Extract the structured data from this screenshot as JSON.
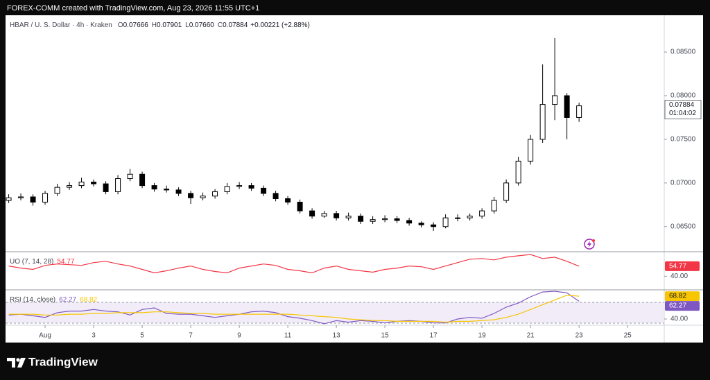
{
  "header": "FOREX-COMM created with TradingView.com, Aug 23, 2026 11:55 UTC+1",
  "footer_logo": "TradingView",
  "chart_data": [
    {
      "type": "candlestick",
      "title": "HBAR / U. S. Dollar · 4h · Kraken",
      "ohlc_legend": [
        {
          "label": "O",
          "value": "0.07666"
        },
        {
          "label": "H",
          "value": "0.07901"
        },
        {
          "label": "L",
          "value": "0.07660"
        },
        {
          "label": "C",
          "value": "0.07884"
        }
      ],
      "change": "+0.00221 (+2.88%)",
      "x": [
        -0.5,
        0,
        0.5,
        1,
        1.5,
        2,
        2.5,
        3,
        3.5,
        4,
        4.5,
        5,
        5.5,
        6,
        6.5,
        7,
        7.5,
        8,
        8.5,
        9,
        9.5,
        10,
        10.5,
        11,
        11.5,
        12,
        12.5,
        13,
        13.5,
        14,
        14.5,
        15,
        15.5,
        16,
        16.5,
        17,
        17.5,
        18,
        18.5,
        19,
        19.5,
        20,
        20.5,
        21,
        21.5,
        22,
        22.5,
        23
      ],
      "open": [
        0.068,
        0.0683,
        0.0684,
        0.0678,
        0.0688,
        0.0695,
        0.0697,
        0.0701,
        0.0699,
        0.069,
        0.0705,
        0.071,
        0.0697,
        0.0693,
        0.0692,
        0.0688,
        0.0683,
        0.0685,
        0.069,
        0.0696,
        0.0697,
        0.0694,
        0.0688,
        0.0682,
        0.0678,
        0.0668,
        0.0662,
        0.0665,
        0.066,
        0.0662,
        0.0656,
        0.0658,
        0.0659,
        0.0657,
        0.0654,
        0.0652,
        0.065,
        0.066,
        0.066,
        0.0662,
        0.0668,
        0.068,
        0.07,
        0.0725,
        0.075,
        0.079,
        0.08,
        0.0775
      ],
      "high": [
        0.0687,
        0.0688,
        0.0687,
        0.0691,
        0.0699,
        0.0701,
        0.0706,
        0.0704,
        0.0702,
        0.0709,
        0.0716,
        0.0713,
        0.07,
        0.0697,
        0.0695,
        0.0691,
        0.0689,
        0.0693,
        0.07,
        0.0701,
        0.07,
        0.0697,
        0.0691,
        0.0685,
        0.0681,
        0.0671,
        0.0668,
        0.0668,
        0.0666,
        0.0665,
        0.0662,
        0.0663,
        0.0662,
        0.066,
        0.0656,
        0.0655,
        0.0664,
        0.0664,
        0.0665,
        0.0671,
        0.0684,
        0.0704,
        0.073,
        0.0755,
        0.0836,
        0.0866,
        0.0803,
        0.0792
      ],
      "low": [
        0.0677,
        0.068,
        0.0674,
        0.0675,
        0.0685,
        0.0692,
        0.0694,
        0.0696,
        0.0687,
        0.0687,
        0.0702,
        0.0694,
        0.069,
        0.0689,
        0.0685,
        0.0676,
        0.068,
        0.0682,
        0.0687,
        0.0693,
        0.0691,
        0.0685,
        0.0679,
        0.0675,
        0.0665,
        0.0659,
        0.066,
        0.0657,
        0.0657,
        0.0653,
        0.0653,
        0.0655,
        0.0654,
        0.0651,
        0.0649,
        0.0645,
        0.0648,
        0.0656,
        0.0657,
        0.0659,
        0.0665,
        0.0677,
        0.0697,
        0.0721,
        0.0746,
        0.0772,
        0.075,
        0.077
      ],
      "close": [
        0.0683,
        0.0684,
        0.0678,
        0.0688,
        0.0695,
        0.0697,
        0.0701,
        0.0699,
        0.069,
        0.0705,
        0.071,
        0.0697,
        0.0693,
        0.0692,
        0.0688,
        0.0683,
        0.0685,
        0.069,
        0.0696,
        0.0697,
        0.0694,
        0.0688,
        0.0682,
        0.0678,
        0.0668,
        0.0662,
        0.0665,
        0.066,
        0.0662,
        0.0656,
        0.0658,
        0.0659,
        0.0657,
        0.0654,
        0.0652,
        0.065,
        0.066,
        0.066,
        0.0662,
        0.0668,
        0.068,
        0.07,
        0.0725,
        0.075,
        0.079,
        0.08,
        0.0775,
        0.07884
      ],
      "up_color": "#ffffff",
      "down_color": "#000000",
      "wick_color": "#000000",
      "ylim": [
        0.0622,
        0.0889
      ],
      "yticks": [
        {
          "value": 0.065,
          "label": "0.06500"
        },
        {
          "value": 0.07,
          "label": "0.07000"
        },
        {
          "value": 0.075,
          "label": "0.07500"
        },
        {
          "value": 0.08,
          "label": "0.08000"
        },
        {
          "value": 0.085,
          "label": "0.08500"
        }
      ],
      "xlim": [
        -0.63,
        26.51
      ],
      "xticks": [
        {
          "value": 1,
          "label": "Aug"
        },
        3,
        5,
        7,
        9,
        11,
        13,
        15,
        17,
        19,
        21,
        23,
        25
      ],
      "last_label": "0.07884",
      "countdown": "01:04:02"
    },
    {
      "type": "line",
      "title": "UO (7, 14, 28)",
      "color": "#f23645",
      "values": [
        55,
        52,
        50,
        56,
        58,
        57,
        56,
        60,
        62,
        58,
        55,
        50,
        45,
        48,
        52,
        55,
        50,
        47,
        45,
        52,
        55,
        58,
        56,
        50,
        48,
        45,
        52,
        55,
        50,
        48,
        46,
        50,
        52,
        55,
        54,
        50,
        55,
        60,
        65,
        66,
        64,
        68,
        70,
        72,
        66,
        68,
        62,
        54.77
      ],
      "last_label": "54.77",
      "ylim": [
        21,
        74
      ],
      "yticks": [
        {
          "value": 40,
          "label": "40.00"
        }
      ]
    },
    {
      "type": "line",
      "title": "RSI (14, close)",
      "series": [
        {
          "color": "#7e57c2",
          "values": [
            45,
            46,
            44,
            42,
            48,
            50,
            50,
            52,
            50,
            49,
            45,
            52,
            54,
            47,
            46,
            46,
            44,
            42,
            44,
            46,
            49,
            50,
            48,
            43,
            41,
            38,
            34,
            38,
            36,
            38,
            37,
            35,
            37,
            38,
            37,
            35,
            35,
            40,
            42,
            41,
            47,
            55,
            60,
            68,
            74,
            75,
            73,
            62.27
          ],
          "last_label": "62.27"
        },
        {
          "color": "#f7c600",
          "values": [
            46,
            46,
            46,
            45,
            45,
            46,
            46,
            47,
            47,
            48,
            48,
            48,
            49,
            49,
            48,
            47,
            47,
            46,
            46,
            46,
            46,
            46,
            46,
            46,
            45,
            44,
            43,
            42,
            40,
            39,
            38,
            38,
            37,
            37,
            37,
            37,
            36,
            37,
            37,
            38,
            39,
            42,
            46,
            52,
            58,
            64,
            70,
            68.82
          ],
          "last_label": "68.82"
        }
      ],
      "ylim": [
        33,
        75
      ],
      "yticks": [
        {
          "value": 40,
          "label": "40.00"
        }
      ]
    }
  ]
}
